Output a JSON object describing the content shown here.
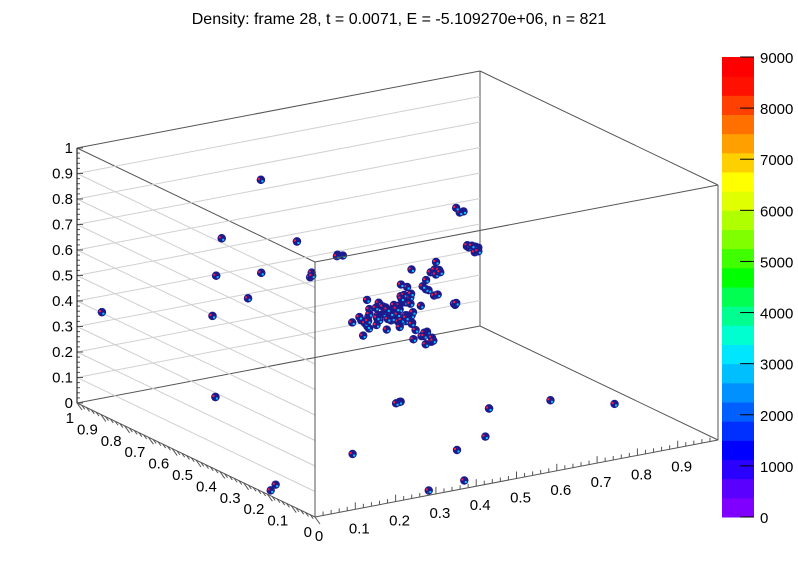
{
  "chart_data": {
    "type": "scatter",
    "title": "Density: frame 28, t = 0.0071, E = -5.109270e+06, n = 821",
    "xlabel": "",
    "ylabel": "",
    "zlabel": "",
    "xlim": [
      0,
      1
    ],
    "ylim": [
      0,
      1
    ],
    "zlim": [
      0,
      1
    ],
    "x_ticks": [
      "0",
      "0.1",
      "0.2",
      "0.3",
      "0.4",
      "0.5",
      "0.6",
      "0.7",
      "0.8",
      "0.9"
    ],
    "y_ticks": [
      "0",
      "0.1",
      "0.2",
      "0.3",
      "0.4",
      "0.5",
      "0.6",
      "0.7",
      "0.8",
      "0.9",
      "1"
    ],
    "z_ticks": [
      "0",
      "0.1",
      "0.2",
      "0.3",
      "0.4",
      "0.5",
      "0.6",
      "0.7",
      "0.8",
      "0.9",
      "1"
    ],
    "colorbar": {
      "range": [
        0,
        9000
      ],
      "labels": [
        "0",
        "1000",
        "2000",
        "3000",
        "4000",
        "5000",
        "6000",
        "7000",
        "8000",
        "9000"
      ],
      "colors": [
        "#7f00ff",
        "#5a00ff",
        "#2a00ff",
        "#0000ff",
        "#0030ff",
        "#0060ff",
        "#0090ff",
        "#00bfff",
        "#00e6ff",
        "#00ffd0",
        "#00ff90",
        "#00ff50",
        "#00ff00",
        "#40ff00",
        "#80ff00",
        "#b0ff00",
        "#e0ff00",
        "#ffff00",
        "#ffd000",
        "#ffa000",
        "#ff7000",
        "#ff4000",
        "#ff1000",
        "#ff0000"
      ]
    },
    "clusters": [
      {
        "x": 0.5,
        "y": 0.52,
        "z": 0.42,
        "n": 50,
        "spread": 0.045
      },
      {
        "x": 0.46,
        "y": 0.56,
        "z": 0.36,
        "n": 10,
        "spread": 0.03
      },
      {
        "x": 0.55,
        "y": 0.48,
        "z": 0.33,
        "n": 10,
        "spread": 0.03
      },
      {
        "x": 0.62,
        "y": 0.62,
        "z": 0.42,
        "n": 12,
        "spread": 0.04
      },
      {
        "x": 0.7,
        "y": 0.7,
        "z": 0.43,
        "n": 10,
        "spread": 0.04
      },
      {
        "x": 0.85,
        "y": 0.78,
        "z": 0.45,
        "n": 8,
        "spread": 0.02
      },
      {
        "x": 0.92,
        "y": 0.95,
        "z": 0.5,
        "n": 3,
        "spread": 0.01
      },
      {
        "x": 0.7,
        "y": 0.6,
        "z": 0.36,
        "n": 4,
        "spread": 0.01
      },
      {
        "x": 0.55,
        "y": 0.82,
        "z": 0.5,
        "n": 3,
        "spread": 0.01
      },
      {
        "x": 0.36,
        "y": 0.62,
        "z": 0.56,
        "n": 3,
        "spread": 0.01
      },
      {
        "x": 0.35,
        "y": 0.82,
        "z": 0.85,
        "n": 2,
        "spread": 0.0
      },
      {
        "x": 0.28,
        "y": 0.55,
        "z": 0.75,
        "n": 2,
        "spread": 0.0
      },
      {
        "x": 0.2,
        "y": 0.62,
        "z": 0.52,
        "n": 2,
        "spread": 0.0
      },
      {
        "x": 0.28,
        "y": 0.7,
        "z": 0.56,
        "n": 2,
        "spread": 0.0
      },
      {
        "x": 0.1,
        "y": 0.6,
        "z": 0.49,
        "n": 2,
        "spread": 0.0
      },
      {
        "x": 0.05,
        "y": 0.98,
        "z": 0.35,
        "n": 2,
        "spread": 0.0
      },
      {
        "x": 0.55,
        "y": 0.2,
        "z": 0.17,
        "n": 2,
        "spread": 0.0
      },
      {
        "x": 0.42,
        "y": 0.36,
        "z": 0.16,
        "n": 3,
        "spread": 0.01
      },
      {
        "x": 0.06,
        "y": 0.52,
        "z": 0.22,
        "n": 2,
        "spread": 0.0
      },
      {
        "x": 0.3,
        "y": 0.9,
        "z": 0.6,
        "n": 2,
        "spread": 0.0
      },
      {
        "x": 0.18,
        "y": 0.72,
        "z": 0.57,
        "n": 2,
        "spread": 0.0
      },
      {
        "x": 0.05,
        "y": 0.25,
        "z": 0.0,
        "n": 1,
        "spread": 0.0
      },
      {
        "x": 0.02,
        "y": 0.22,
        "z": 0.0,
        "n": 1,
        "spread": 0.0
      },
      {
        "x": 0.3,
        "y": 0.35,
        "z": 0.0,
        "n": 1,
        "spread": 0.0
      },
      {
        "x": 0.5,
        "y": 0.25,
        "z": 0.0,
        "n": 1,
        "spread": 0.0
      },
      {
        "x": 0.6,
        "y": 0.3,
        "z": 0.0,
        "n": 1,
        "spread": 0.0
      },
      {
        "x": 0.4,
        "y": 0.05,
        "z": 0.0,
        "n": 1,
        "spread": 0.0
      },
      {
        "x": 0.3,
        "y": 0.03,
        "z": 0.0,
        "n": 1,
        "spread": 0.0
      },
      {
        "x": 0.85,
        "y": 0.45,
        "z": 0.0,
        "n": 1,
        "spread": 0.0
      },
      {
        "x": 0.95,
        "y": 0.35,
        "z": 0.0,
        "n": 1,
        "spread": 0.0
      }
    ]
  }
}
